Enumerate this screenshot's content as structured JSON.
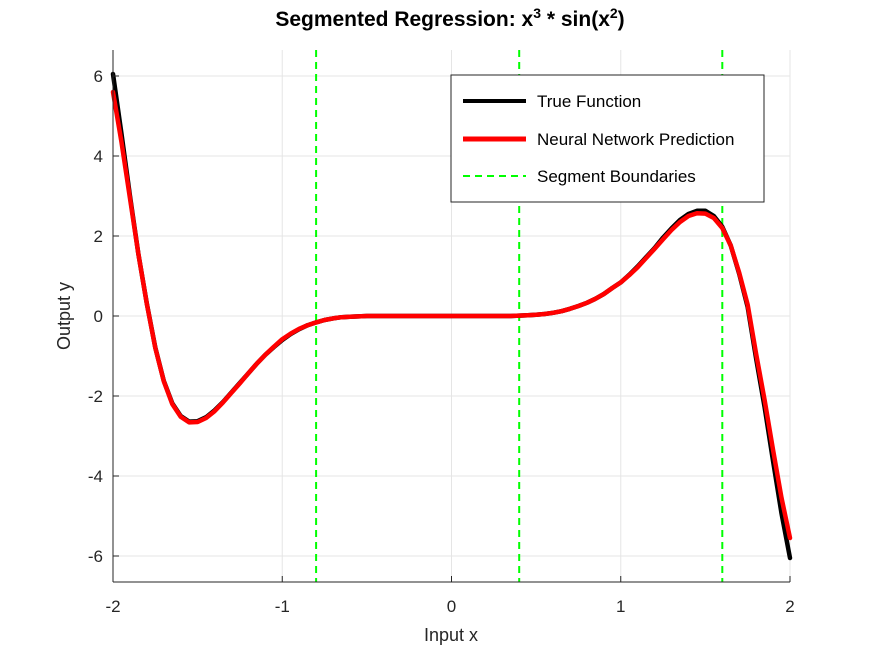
{
  "chart_data": {
    "type": "line",
    "title": {
      "prefix": "Segmented Regression: x",
      "sup1": "3",
      "middle": " * sin(x",
      "sup2": "2",
      "suffix": ")"
    },
    "xlabel": "Input x",
    "ylabel": "Output y",
    "xlim": [
      -2,
      2
    ],
    "ylim": [
      -6.65,
      6.65
    ],
    "xticks": [
      -2,
      -1,
      0,
      1,
      2
    ],
    "yticks": [
      -6,
      -4,
      -2,
      0,
      2,
      4,
      6
    ],
    "xtick_labels": [
      "-2",
      "-1",
      "0",
      "1",
      "2"
    ],
    "ytick_labels": [
      "-6",
      "-4",
      "-2",
      "0",
      "2",
      "4",
      "6"
    ],
    "grid": true,
    "legend_position": "top-right",
    "legend": {
      "true_function": "True Function",
      "prediction": "Neural Network Prediction",
      "boundaries": "Segment Boundaries"
    },
    "colors": {
      "true_function": "#000000",
      "prediction": "#ff0000",
      "boundaries": "#00ff00",
      "grid": "#e5e5e5",
      "axis": "#262626"
    },
    "segment_boundaries": [
      -0.8,
      0.4,
      1.6
    ],
    "series": [
      {
        "name": "True Function",
        "x": [
          -2.0,
          -1.95,
          -1.9,
          -1.85,
          -1.8,
          -1.75,
          -1.7,
          -1.65,
          -1.6,
          -1.55,
          -1.5,
          -1.45,
          -1.4,
          -1.35,
          -1.3,
          -1.25,
          -1.2,
          -1.15,
          -1.1,
          -1.05,
          -1.0,
          -0.95,
          -0.9,
          -0.85,
          -0.8,
          -0.75,
          -0.7,
          -0.65,
          -0.6,
          -0.55,
          -0.5,
          -0.45,
          -0.4,
          -0.35,
          -0.3,
          -0.25,
          -0.2,
          -0.15,
          -0.1,
          -0.05,
          0.0,
          0.05,
          0.1,
          0.15,
          0.2,
          0.25,
          0.3,
          0.35,
          0.4,
          0.45,
          0.5,
          0.55,
          0.6,
          0.65,
          0.7,
          0.75,
          0.8,
          0.85,
          0.9,
          0.95,
          1.0,
          1.05,
          1.1,
          1.15,
          1.2,
          1.25,
          1.3,
          1.35,
          1.4,
          1.45,
          1.5,
          1.55,
          1.6,
          1.65,
          1.7,
          1.75,
          1.8,
          1.85,
          1.9,
          1.95,
          2.0
        ],
        "values": [
          6.05,
          4.56,
          3.01,
          1.55,
          0.31,
          -0.79,
          -1.62,
          -2.18,
          -2.5,
          -2.64,
          -2.63,
          -2.53,
          -2.36,
          -2.15,
          -1.91,
          -1.67,
          -1.43,
          -1.19,
          -0.97,
          -0.78,
          -0.6,
          -0.45,
          -0.33,
          -0.23,
          -0.16,
          -0.1,
          -0.06,
          -0.03,
          -0.02,
          -0.01,
          0.0,
          0.0,
          0.0,
          0.0,
          0.0,
          0.0,
          0.0,
          0.0,
          0.0,
          0.0,
          0.0,
          0.0,
          0.0,
          0.0,
          0.0,
          0.0,
          0.0,
          0.0,
          0.01,
          0.02,
          0.03,
          0.05,
          0.08,
          0.12,
          0.18,
          0.25,
          0.33,
          0.43,
          0.55,
          0.7,
          0.84,
          1.03,
          1.24,
          1.47,
          1.7,
          1.96,
          2.19,
          2.4,
          2.55,
          2.63,
          2.63,
          2.5,
          2.23,
          1.76,
          1.05,
          0.22,
          -1.07,
          -2.28,
          -3.63,
          -4.94,
          -6.05
        ]
      },
      {
        "name": "Neural Network Prediction",
        "x": [
          -2.0,
          -1.95,
          -1.9,
          -1.85,
          -1.8,
          -1.75,
          -1.7,
          -1.65,
          -1.6,
          -1.55,
          -1.5,
          -1.45,
          -1.4,
          -1.35,
          -1.3,
          -1.25,
          -1.2,
          -1.15,
          -1.1,
          -1.05,
          -1.0,
          -0.95,
          -0.9,
          -0.85,
          -0.8,
          -0.75,
          -0.7,
          -0.65,
          -0.6,
          -0.55,
          -0.5,
          -0.45,
          -0.4,
          -0.35,
          -0.3,
          -0.25,
          -0.2,
          -0.15,
          -0.1,
          -0.05,
          0.0,
          0.05,
          0.1,
          0.15,
          0.2,
          0.25,
          0.3,
          0.35,
          0.4,
          0.45,
          0.5,
          0.55,
          0.6,
          0.65,
          0.7,
          0.75,
          0.8,
          0.85,
          0.9,
          0.95,
          1.0,
          1.05,
          1.1,
          1.15,
          1.2,
          1.25,
          1.3,
          1.35,
          1.4,
          1.45,
          1.5,
          1.55,
          1.6,
          1.65,
          1.7,
          1.75,
          1.8,
          1.85,
          1.9,
          1.95,
          2.0
        ],
        "values": [
          5.6,
          4.35,
          2.95,
          1.55,
          0.3,
          -0.8,
          -1.63,
          -2.2,
          -2.52,
          -2.66,
          -2.65,
          -2.55,
          -2.38,
          -2.16,
          -1.92,
          -1.68,
          -1.43,
          -1.19,
          -0.97,
          -0.77,
          -0.58,
          -0.44,
          -0.32,
          -0.23,
          -0.16,
          -0.1,
          -0.06,
          -0.03,
          -0.02,
          -0.01,
          0.0,
          0.0,
          0.0,
          0.0,
          0.0,
          0.0,
          0.0,
          0.0,
          0.0,
          0.0,
          0.0,
          0.0,
          0.0,
          0.0,
          0.0,
          0.0,
          0.0,
          0.0,
          0.01,
          0.02,
          0.03,
          0.05,
          0.08,
          0.12,
          0.18,
          0.25,
          0.33,
          0.43,
          0.55,
          0.7,
          0.84,
          1.02,
          1.22,
          1.45,
          1.68,
          1.92,
          2.15,
          2.35,
          2.5,
          2.57,
          2.56,
          2.45,
          2.2,
          1.76,
          1.08,
          0.28,
          -0.95,
          -2.1,
          -3.35,
          -4.55,
          -5.55
        ]
      }
    ]
  }
}
